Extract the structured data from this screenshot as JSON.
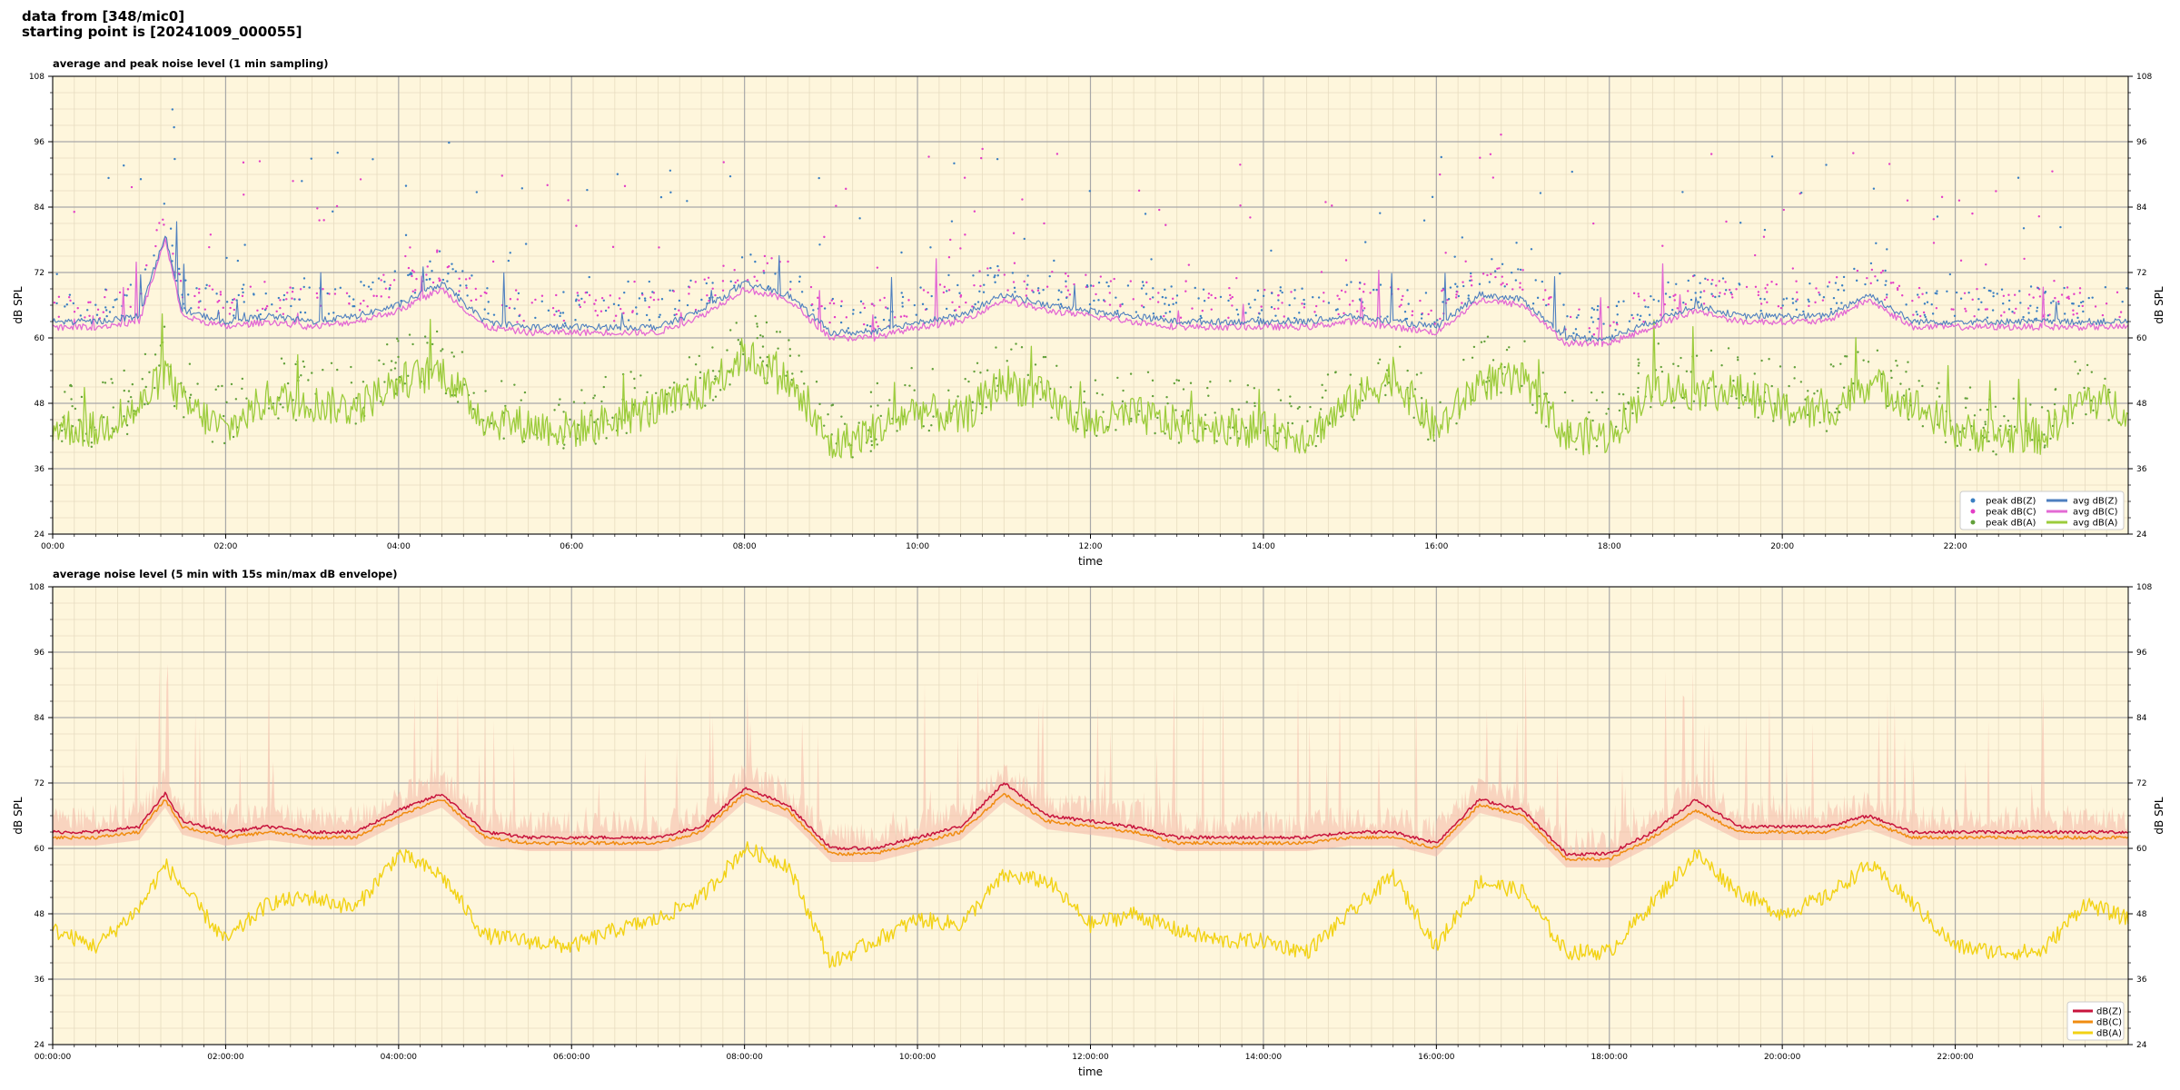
{
  "header": {
    "line1": "data from [348/mic0]",
    "line2": "starting point is [20241009_000055]"
  },
  "colors": {
    "plot_bg": "#fef6dc",
    "peak_z": "#3a7fc2",
    "peak_c": "#e33ec6",
    "peak_a": "#62a03a",
    "avg_z": "#4e7fbf",
    "avg_c": "#e36ad4",
    "avg_a": "#9ccc3c",
    "db_z": "#c8143c",
    "db_c": "#f08c10",
    "db_a": "#f2d214",
    "envelope": "#f4b8a8"
  },
  "chart_data": [
    {
      "type": "line",
      "title": "average and peak noise level (1 min sampling)",
      "xlabel": "time",
      "ylabel": "dB SPL",
      "xlim": [
        "00:00",
        "24:00"
      ],
      "ylim": [
        24,
        108
      ],
      "yticks": [
        24,
        36,
        48,
        60,
        72,
        84,
        96,
        108
      ],
      "xticks": [
        "00:00",
        "02:00",
        "04:00",
        "06:00",
        "08:00",
        "10:00",
        "12:00",
        "14:00",
        "16:00",
        "18:00",
        "20:00",
        "22:00"
      ],
      "grid": true,
      "legend": "bottom-right",
      "x_hours": [
        0,
        0.5,
        1,
        1.3,
        1.5,
        2,
        2.5,
        3,
        3.5,
        4,
        4.5,
        5,
        5.5,
        6,
        6.5,
        7,
        7.5,
        8,
        8.5,
        9,
        9.5,
        10,
        10.5,
        11,
        11.5,
        12,
        12.5,
        13,
        13.5,
        14,
        14.5,
        15,
        15.5,
        16,
        16.5,
        17,
        17.5,
        18,
        18.5,
        19,
        19.5,
        20,
        20.5,
        21,
        21.5,
        22,
        22.5,
        23,
        23.5,
        24
      ],
      "series": [
        {
          "name": "avg dB(Z)",
          "kind": "line",
          "values": [
            63,
            63,
            64,
            79,
            65,
            63,
            64,
            63,
            64,
            66,
            70,
            63,
            62,
            62,
            62,
            62,
            65,
            70,
            68,
            61,
            61,
            63,
            64,
            68,
            66,
            65,
            64,
            63,
            63,
            63,
            63,
            64,
            63,
            62,
            68,
            67,
            60,
            60,
            63,
            66,
            64,
            64,
            64,
            68,
            63,
            63,
            63,
            63,
            63,
            63
          ]
        },
        {
          "name": "avg dB(C)",
          "kind": "line",
          "values": [
            62,
            62,
            63,
            78,
            64,
            62,
            63,
            62,
            63,
            65,
            69,
            62,
            61,
            61,
            61,
            61,
            64,
            69,
            67,
            60,
            60,
            62,
            63,
            67,
            65,
            64,
            63,
            62,
            62,
            62,
            62,
            63,
            62,
            61,
            67,
            66,
            59,
            59,
            62,
            65,
            63,
            63,
            63,
            67,
            62,
            62,
            62,
            62,
            62,
            62
          ]
        },
        {
          "name": "avg dB(A)",
          "kind": "line",
          "values": [
            44,
            43,
            47,
            54,
            48,
            43,
            49,
            48,
            47,
            52,
            54,
            45,
            44,
            43,
            45,
            47,
            50,
            57,
            52,
            40,
            43,
            47,
            45,
            52,
            49,
            44,
            46,
            44,
            44,
            43,
            42,
            48,
            53,
            43,
            52,
            52,
            42,
            42,
            51,
            50,
            50,
            47,
            46,
            52,
            48,
            43,
            42,
            42,
            49,
            47
          ]
        },
        {
          "name": "peak dB(Z)",
          "kind": "points",
          "values": []
        },
        {
          "name": "peak dB(C)",
          "kind": "points",
          "values": []
        },
        {
          "name": "peak dB(A)",
          "kind": "points",
          "values": []
        }
      ]
    },
    {
      "type": "line",
      "title": "average noise level (5 min with 15s min/max dB envelope)",
      "xlabel": "time",
      "ylabel": "dB SPL",
      "xlim": [
        "00:00:00",
        "24:00:00"
      ],
      "ylim": [
        24,
        108
      ],
      "yticks": [
        24,
        36,
        48,
        60,
        72,
        84,
        96,
        108
      ],
      "xticks": [
        "00:00:00",
        "02:00:00",
        "04:00:00",
        "06:00:00",
        "08:00:00",
        "10:00:00",
        "12:00:00",
        "14:00:00",
        "16:00:00",
        "18:00:00",
        "20:00:00",
        "22:00:00"
      ],
      "grid": true,
      "legend": "bottom-right",
      "x_hours": [
        0,
        0.5,
        1,
        1.3,
        1.5,
        2,
        2.5,
        3,
        3.5,
        4,
        4.5,
        5,
        5.5,
        6,
        6.5,
        7,
        7.5,
        8,
        8.5,
        9,
        9.5,
        10,
        10.5,
        11,
        11.5,
        12,
        12.5,
        13,
        13.5,
        14,
        14.5,
        15,
        15.5,
        16,
        16.5,
        17,
        17.5,
        18,
        18.5,
        19,
        19.5,
        20,
        20.5,
        21,
        21.5,
        22,
        22.5,
        23,
        23.5,
        24
      ],
      "series": [
        {
          "name": "dB(Z)",
          "kind": "line",
          "values": [
            63,
            63,
            64,
            70,
            65,
            63,
            64,
            63,
            63,
            67,
            70,
            63,
            62,
            62,
            62,
            62,
            64,
            71,
            68,
            60,
            60,
            62,
            64,
            72,
            66,
            65,
            64,
            62,
            62,
            62,
            62,
            63,
            63,
            61,
            69,
            67,
            59,
            59,
            63,
            69,
            64,
            64,
            64,
            66,
            63,
            63,
            63,
            63,
            63,
            63
          ]
        },
        {
          "name": "dB(C)",
          "kind": "line",
          "values": [
            62,
            62,
            63,
            69,
            64,
            62,
            63,
            62,
            62,
            66,
            69,
            62,
            61,
            61,
            61,
            61,
            63,
            70,
            67,
            59,
            59,
            61,
            63,
            70,
            65,
            64,
            63,
            61,
            61,
            61,
            61,
            62,
            62,
            60,
            68,
            66,
            58,
            58,
            62,
            67,
            63,
            63,
            63,
            65,
            62,
            62,
            62,
            62,
            62,
            62
          ]
        },
        {
          "name": "dB(A)",
          "kind": "line",
          "values": [
            45,
            42,
            49,
            57,
            53,
            43,
            50,
            51,
            49,
            59,
            55,
            44,
            43,
            42,
            45,
            47,
            51,
            60,
            57,
            39,
            43,
            47,
            46,
            55,
            54,
            46,
            48,
            45,
            43,
            43,
            41,
            48,
            55,
            42,
            54,
            52,
            41,
            41,
            50,
            59,
            52,
            48,
            51,
            57,
            50,
            42,
            41,
            41,
            50,
            47
          ]
        }
      ]
    }
  ],
  "legend_top": {
    "col1": [
      "peak dB(Z)",
      "peak dB(C)",
      "peak dB(A)"
    ],
    "col2": [
      "avg dB(Z)",
      "avg dB(C)",
      "avg dB(A)"
    ]
  },
  "legend_bottom": [
    "dB(Z)",
    "dB(C)",
    "dB(A)"
  ]
}
